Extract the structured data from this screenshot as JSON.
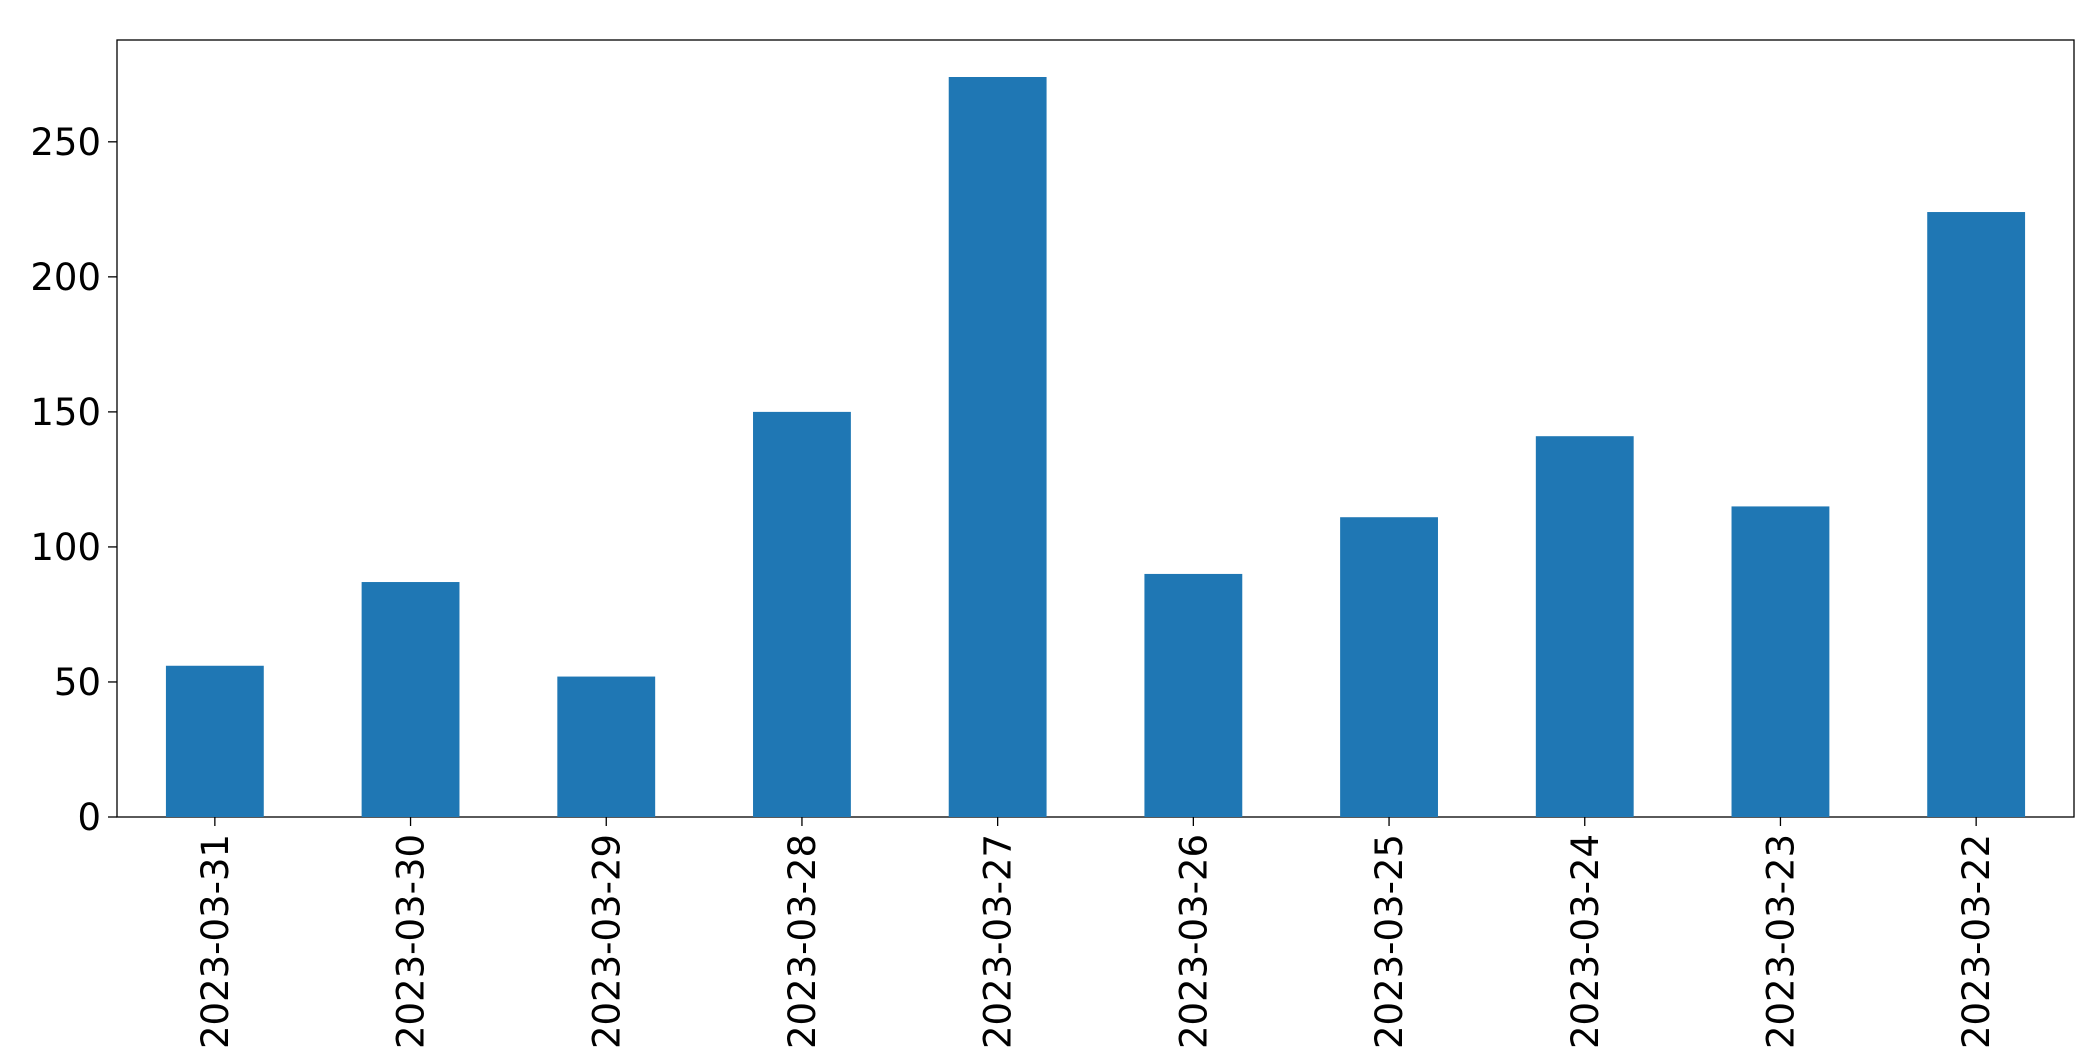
{
  "chart_data": {
    "type": "bar",
    "categories": [
      "2023-03-31",
      "2023-03-30",
      "2023-03-29",
      "2023-03-28",
      "2023-03-27",
      "2023-03-26",
      "2023-03-25",
      "2023-03-24",
      "2023-03-23",
      "2023-03-22"
    ],
    "values": [
      56,
      87,
      52,
      150,
      274,
      90,
      111,
      141,
      115,
      224
    ],
    "color": "#1f77b4",
    "ylim": [
      0,
      287.7
    ],
    "yticks": [
      0,
      50,
      100,
      150,
      200,
      250
    ],
    "grid": false
  }
}
